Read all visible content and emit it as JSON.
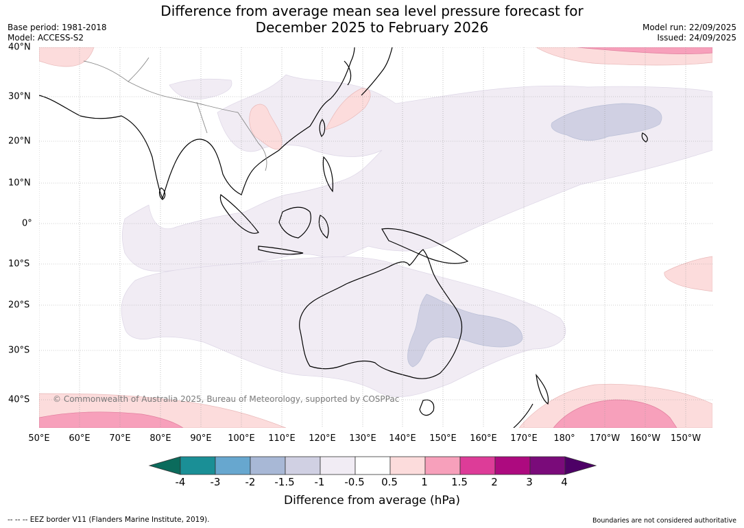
{
  "title": {
    "line1": "Difference from average mean sea level pressure forecast for",
    "line2": "December 2025 to February 2026"
  },
  "meta_left": {
    "base_period": "Base period: 1981-2018",
    "model": "Model: ACCESS-S2"
  },
  "meta_right": {
    "model_run": "Model run: 22/09/2025",
    "issued": "Issued: 24/09/2025"
  },
  "map": {
    "copyright": "© Commonwealth of Australia 2025, Bureau of Meteorology, supported by COSPPac",
    "lon_labels": [
      "50°E",
      "60°E",
      "70°E",
      "80°E",
      "90°E",
      "100°E",
      "110°E",
      "120°E",
      "130°E",
      "140°E",
      "150°E",
      "160°E",
      "170°E",
      "180°",
      "170°W",
      "160°W",
      "150°W"
    ],
    "lat_labels": [
      "40°N",
      "30°N",
      "20°N",
      "10°N",
      "0°",
      "10°S",
      "20°S",
      "30°S",
      "40°S"
    ],
    "regions": [
      {
        "name": "positive-anomaly-north-pacific",
        "level": "0.5 to 1"
      },
      {
        "name": "positive-anomaly-north-pacific-strong",
        "level": "1 to 1.5"
      },
      {
        "name": "positive-anomaly-southern-ocean",
        "level": "0.5 to 1"
      },
      {
        "name": "positive-anomaly-southern-ocean-strong",
        "level": "1 to 1.5"
      },
      {
        "name": "positive-anomaly-south-pacific",
        "level": "0.5 to 1"
      },
      {
        "name": "positive-anomaly-south-china",
        "level": "0.5 to 1"
      },
      {
        "name": "negative-anomaly-tropical-band",
        "level": "-0.5 to -1"
      },
      {
        "name": "negative-anomaly-australia",
        "level": "-1 to -1.5"
      },
      {
        "name": "negative-anomaly-north-pacific",
        "level": "-1 to -1.5"
      }
    ]
  },
  "colorbar": {
    "colors": [
      "#0b6b5c",
      "#1a8f96",
      "#67a7cf",
      "#a8b8d6",
      "#d0d0e3",
      "#f1ecf4",
      "#ffffff",
      "#fcdcdc",
      "#f7a0bb",
      "#dd3c98",
      "#ad0a7f",
      "#7a0b7a",
      "#4d0066"
    ],
    "tick_labels": [
      "-4",
      "-3",
      "-2",
      "-1.5",
      "-1",
      "-0.5",
      "0.5",
      "1",
      "1.5",
      "2",
      "3",
      "4"
    ],
    "title": "Difference from average (hPa)"
  },
  "footer": {
    "eez": "--  --  -- EEZ border V11 (Flanders Marine Institute, 2019).",
    "boundaries": "Boundaries are not considered authoritative"
  }
}
